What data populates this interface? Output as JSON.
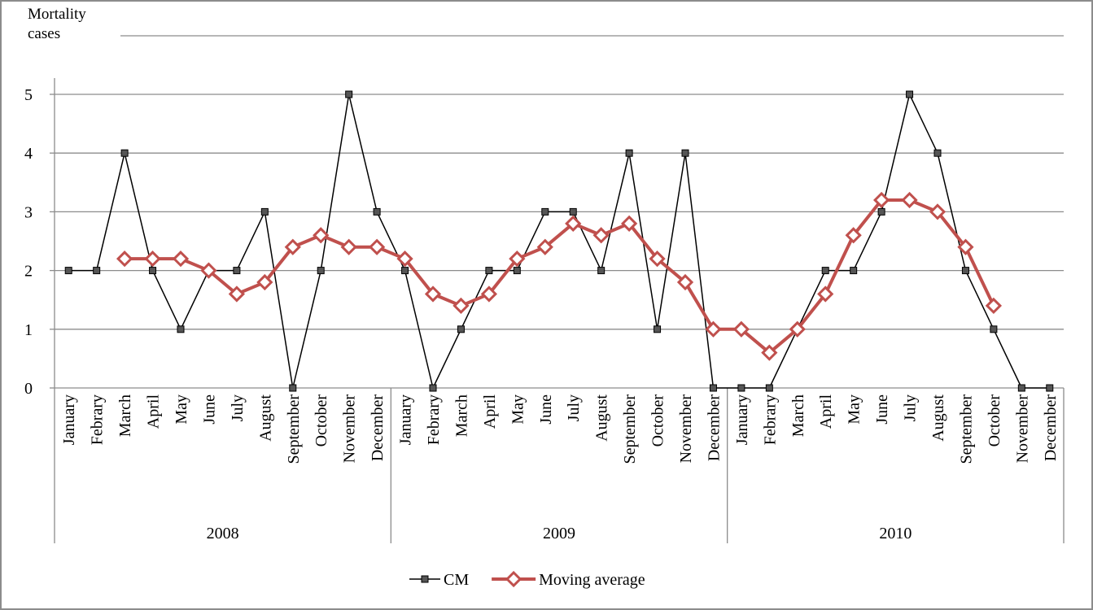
{
  "chart_data": {
    "type": "line",
    "y_label": "Mortality cases",
    "categories": [
      "January",
      "Febrary",
      "March",
      "April",
      "May",
      "June",
      "July",
      "August",
      "September",
      "October",
      "November",
      "December",
      "January",
      "Febrary",
      "March",
      "April",
      "May",
      "June",
      "July",
      "August",
      "September",
      "October",
      "November",
      "December",
      "January",
      "Febrary",
      "March",
      "April",
      "May",
      "June",
      "July",
      "August",
      "September",
      "October",
      "November",
      "December"
    ],
    "groups": [
      "2008",
      "2009",
      "2010"
    ],
    "series": [
      {
        "name": "CM",
        "color": "#000000",
        "marker": "square",
        "values": [
          2,
          2,
          4,
          2,
          1,
          2,
          2,
          3,
          0,
          2,
          5,
          3,
          2,
          0,
          1,
          2,
          2,
          3,
          3,
          2,
          4,
          1,
          4,
          0,
          0,
          0,
          1,
          2,
          2,
          3,
          5,
          4,
          2,
          1,
          0,
          0
        ]
      },
      {
        "name": "Moving average",
        "color": "#c0504d",
        "marker": "diamond",
        "values": [
          null,
          null,
          2.2,
          2.2,
          2.2,
          2.0,
          1.6,
          1.8,
          2.4,
          2.6,
          2.4,
          2.4,
          2.2,
          1.6,
          1.4,
          1.6,
          2.2,
          2.4,
          2.8,
          2.6,
          2.8,
          2.2,
          1.8,
          1.0,
          1.0,
          0.6,
          1.0,
          1.6,
          2.6,
          3.2,
          3.2,
          3.0,
          2.4,
          1.4,
          null,
          null
        ]
      }
    ],
    "ylim": [
      0,
      5
    ],
    "yticks": [
      0,
      1,
      2,
      3,
      4,
      5
    ],
    "grid": true,
    "legend": "bottom"
  }
}
